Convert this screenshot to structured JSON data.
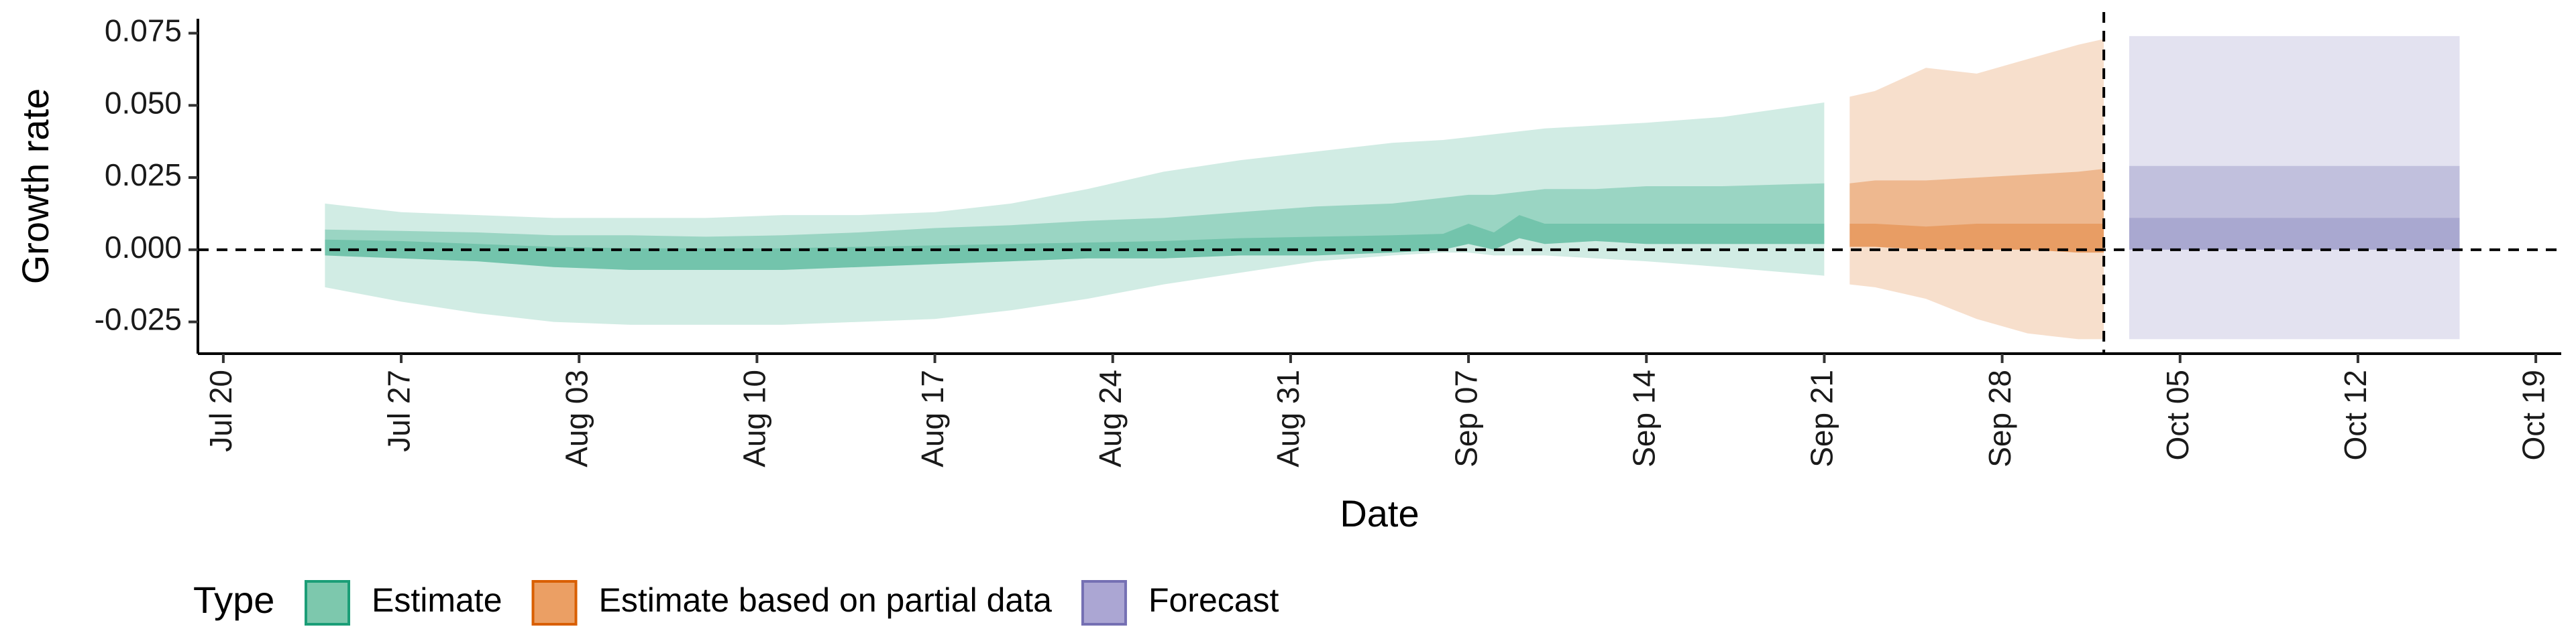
{
  "chart_data": {
    "type": "area",
    "xlabel": "Date",
    "ylabel": "Growth rate",
    "x_range": [
      "2020-07-19",
      "2020-10-20"
    ],
    "ylim": [
      -0.036,
      0.08
    ],
    "x_ticks": [
      {
        "date": "2020-07-20",
        "label": "Jul 20"
      },
      {
        "date": "2020-07-27",
        "label": "Jul 27"
      },
      {
        "date": "2020-08-03",
        "label": "Aug 03"
      },
      {
        "date": "2020-08-10",
        "label": "Aug 10"
      },
      {
        "date": "2020-08-17",
        "label": "Aug 17"
      },
      {
        "date": "2020-08-24",
        "label": "Aug 24"
      },
      {
        "date": "2020-08-31",
        "label": "Aug 31"
      },
      {
        "date": "2020-09-07",
        "label": "Sep 07"
      },
      {
        "date": "2020-09-14",
        "label": "Sep 14"
      },
      {
        "date": "2020-09-21",
        "label": "Sep 21"
      },
      {
        "date": "2020-09-28",
        "label": "Sep 28"
      },
      {
        "date": "2020-10-05",
        "label": "Oct 05"
      },
      {
        "date": "2020-10-12",
        "label": "Oct 12"
      },
      {
        "date": "2020-10-19",
        "label": "Oct 19"
      }
    ],
    "y_ticks": [
      {
        "value": 0.075,
        "label": "0.075"
      },
      {
        "value": 0.05,
        "label": "0.050"
      },
      {
        "value": 0.025,
        "label": "0.025"
      },
      {
        "value": 0.0,
        "label": "0.000"
      },
      {
        "value": -0.025,
        "label": "-0.025"
      }
    ],
    "reference_lines": {
      "horizontal_y": 0.0,
      "vertical_date": "2020-10-02",
      "style": "dashed"
    },
    "grid": false,
    "legend": {
      "title": "Type",
      "placement": "bottom",
      "entries": [
        {
          "label": "Estimate",
          "fill": "#7dc8ad",
          "stroke": "#1b9e77"
        },
        {
          "label": "Estimate based on partial data",
          "fill": "#eb9f64",
          "stroke": "#d95f02"
        },
        {
          "label": "Forecast",
          "fill": "#aba6d3",
          "stroke": "#7570b3"
        }
      ]
    },
    "series": [
      {
        "name": "Estimate",
        "color": "#1b9e77",
        "x": [
          "2020-07-24",
          "2020-07-27",
          "2020-07-30",
          "2020-08-02",
          "2020-08-05",
          "2020-08-08",
          "2020-08-11",
          "2020-08-14",
          "2020-08-17",
          "2020-08-20",
          "2020-08-23",
          "2020-08-26",
          "2020-08-29",
          "2020-09-01",
          "2020-09-04",
          "2020-09-06",
          "2020-09-07",
          "2020-09-08",
          "2020-09-09",
          "2020-09-10",
          "2020-09-12",
          "2020-09-14",
          "2020-09-17",
          "2020-09-21"
        ],
        "median": [
          0.0035,
          0.003,
          0.002,
          0.001,
          0.0005,
          0.0005,
          0.0005,
          0.001,
          0.0015,
          0.002,
          0.0025,
          0.003,
          0.004,
          0.0045,
          0.005,
          0.0055,
          0.009,
          0.006,
          0.012,
          0.009,
          0.009,
          0.009,
          0.009,
          0.009
        ],
        "inner_lower": [
          -0.002,
          -0.003,
          -0.004,
          -0.006,
          -0.007,
          -0.007,
          -0.007,
          -0.006,
          -0.005,
          -0.004,
          -0.003,
          -0.003,
          -0.002,
          -0.002,
          -0.001,
          0.0,
          0.002,
          0.0,
          0.004,
          0.002,
          0.003,
          0.002,
          0.002,
          0.002
        ],
        "inner_upper": [
          0.007,
          0.0065,
          0.006,
          0.005,
          0.005,
          0.0045,
          0.005,
          0.006,
          0.0075,
          0.0085,
          0.01,
          0.011,
          0.013,
          0.015,
          0.016,
          0.018,
          0.019,
          0.019,
          0.02,
          0.021,
          0.021,
          0.022,
          0.022,
          0.023
        ],
        "outer_lower": [
          -0.013,
          -0.018,
          -0.022,
          -0.025,
          -0.026,
          -0.026,
          -0.026,
          -0.025,
          -0.024,
          -0.021,
          -0.017,
          -0.012,
          -0.008,
          -0.004,
          -0.002,
          -0.001,
          -0.001,
          -0.002,
          -0.002,
          -0.002,
          -0.003,
          -0.004,
          -0.006,
          -0.009
        ],
        "outer_upper": [
          0.016,
          0.013,
          0.012,
          0.011,
          0.011,
          0.011,
          0.012,
          0.012,
          0.013,
          0.016,
          0.021,
          0.027,
          0.031,
          0.034,
          0.037,
          0.038,
          0.039,
          0.04,
          0.041,
          0.042,
          0.043,
          0.044,
          0.046,
          0.051
        ]
      },
      {
        "name": "Estimate based on partial data",
        "color": "#d95f02",
        "x": [
          "2020-09-22",
          "2020-09-23",
          "2020-09-25",
          "2020-09-27",
          "2020-09-29",
          "2020-10-01",
          "2020-10-02"
        ],
        "median": [
          0.009,
          0.009,
          0.008,
          0.009,
          0.009,
          0.009,
          0.009
        ],
        "inner_lower": [
          0.001,
          0.001,
          0.0,
          0.0,
          0.0,
          -0.001,
          -0.001
        ],
        "inner_upper": [
          0.023,
          0.024,
          0.024,
          0.025,
          0.026,
          0.027,
          0.028
        ],
        "outer_lower": [
          -0.012,
          -0.013,
          -0.017,
          -0.024,
          -0.029,
          -0.031,
          -0.031
        ],
        "outer_upper": [
          0.053,
          0.055,
          0.063,
          0.061,
          0.066,
          0.071,
          0.073
        ]
      },
      {
        "name": "Forecast",
        "color": "#7570b3",
        "x": [
          "2020-10-03",
          "2020-10-16"
        ],
        "median": [
          0.011,
          0.011
        ],
        "inner_lower": [
          0.0,
          0.0
        ],
        "inner_upper": [
          0.029,
          0.029
        ],
        "outer_lower": [
          -0.031,
          -0.031
        ],
        "outer_upper": [
          0.074,
          0.074
        ]
      }
    ]
  }
}
